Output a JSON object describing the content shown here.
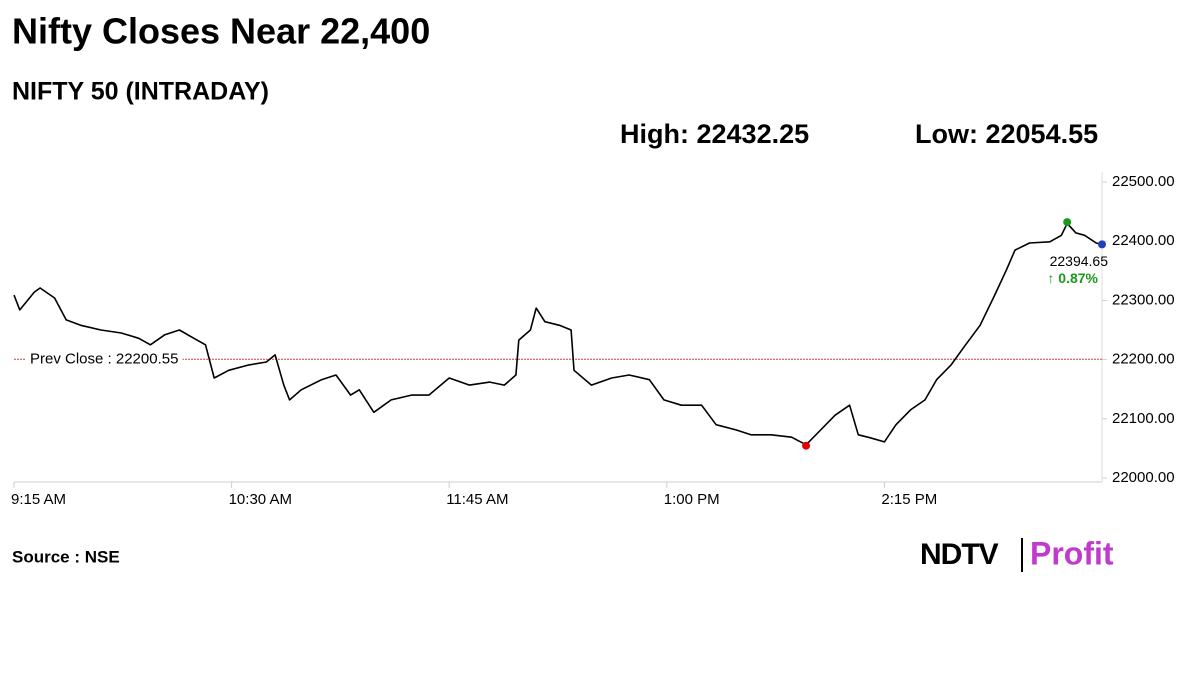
{
  "chart_data": {
    "type": "line",
    "title": "Nifty Closes Near 22,400",
    "subtitle": "NIFTY 50 (INTRADAY)",
    "high_label": "High:",
    "high": 22432.25,
    "low_label": "Low:",
    "low": 22054.55,
    "prev_close_label": "Prev Close :",
    "prev_close": 22200.55,
    "last_label": "22394.65",
    "change_label": "↑ 0.87%",
    "source": "Source : NSE",
    "logo": [
      "NDTV",
      "Profit"
    ],
    "x": [
      555,
      557,
      562,
      564,
      569,
      573,
      578,
      585,
      592,
      598,
      602,
      607,
      612,
      617,
      621,
      624,
      629,
      636,
      642,
      645,
      648,
      650,
      654,
      661,
      666,
      671,
      674,
      679,
      685,
      692,
      698,
      705,
      712,
      719,
      724,
      728,
      729,
      733,
      735,
      738,
      743,
      747,
      748,
      754,
      761,
      767,
      774,
      779,
      785,
      792,
      797,
      804,
      809,
      816,
      823,
      828,
      833,
      838,
      843,
      846,
      850,
      855,
      859,
      864,
      869,
      873,
      878,
      883,
      888,
      893,
      897,
      900,
      905,
      912,
      916,
      918,
      921,
      924,
      928,
      930
    ],
    "series": [
      {
        "name": "NIFTY 50",
        "color": "#000000",
        "values": [
          22309,
          22284,
          22314,
          22321,
          22304,
          22267,
          22258,
          22250,
          22245,
          22236,
          22225,
          22242,
          22250,
          22236,
          22225,
          22169,
          22182,
          22191,
          22196,
          22208,
          22157,
          22132,
          22149,
          22166,
          22174,
          22140,
          22149,
          22111,
          22132,
          22140,
          22140,
          22169,
          22157,
          22162,
          22157,
          22174,
          22233,
          22250,
          22287,
          22264,
          22258,
          22250,
          22182,
          22157,
          22169,
          22174,
          22166,
          22132,
          22123,
          22123,
          22090,
          22081,
          22073,
          22073,
          22069,
          22056,
          22081,
          22106,
          22123,
          22073,
          22068,
          22061,
          22090,
          22115,
          22132,
          22166,
          22191,
          22225,
          22258,
          22309,
          22351,
          22385,
          22397,
          22399,
          22410,
          22430,
          22414,
          22410,
          22397,
          22394.65
        ]
      }
    ],
    "xlim": [
      555,
      930
    ],
    "xticks": [
      {
        "value": 555,
        "label": "9:15 AM"
      },
      {
        "value": 630,
        "label": "10:30 AM"
      },
      {
        "value": 705,
        "label": "11:45 AM"
      },
      {
        "value": 780,
        "label": "1:00 PM"
      },
      {
        "value": 855,
        "label": "2:15 PM"
      }
    ],
    "ylim": [
      22000,
      22500
    ],
    "yticks": [
      {
        "value": 22000,
        "label": "22000.00"
      },
      {
        "value": 22100,
        "label": "22100.00"
      },
      {
        "value": 22200,
        "label": "22200.00"
      },
      {
        "value": 22300,
        "label": "22300.00"
      },
      {
        "value": 22400,
        "label": "22400.00"
      },
      {
        "value": 22500,
        "label": "22500.00"
      }
    ],
    "high_color": "#1a9a1a",
    "low_color": "#e00000",
    "last_color": "#1f3fbf",
    "prev_close_color": "#d04040"
  }
}
